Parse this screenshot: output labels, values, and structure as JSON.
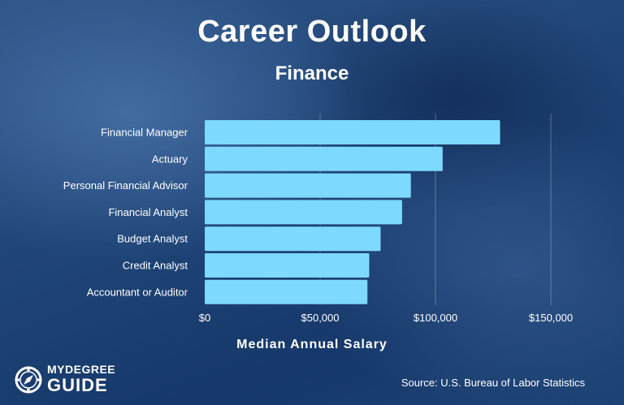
{
  "header": {
    "title": "Career Outlook",
    "subtitle": "Finance"
  },
  "chart_data": {
    "type": "bar",
    "orientation": "horizontal",
    "categories": [
      "Financial Manager",
      "Actuary",
      "Personal Financial Advisor",
      "Financial Analyst",
      "Budget Analyst",
      "Credit Analyst",
      "Accountant or Auditor"
    ],
    "values": [
      127990,
      103110,
      89330,
      85520,
      76220,
      71280,
      70500
    ],
    "xlabel": "Median Annual Salary",
    "xlim": [
      0,
      150000
    ],
    "xticks": [
      0,
      50000,
      100000,
      150000
    ],
    "xtick_labels": [
      "$0",
      "$50,000",
      "$100,000",
      "$150,000"
    ],
    "grid": "vertical",
    "bar_color": "#7dd9ff"
  },
  "logo": {
    "line1": "MYDEGREE",
    "line2": "GUIDE",
    "icon": "compass-icon"
  },
  "footer": {
    "source": "Source: U.S. Bureau of Labor Statistics"
  }
}
